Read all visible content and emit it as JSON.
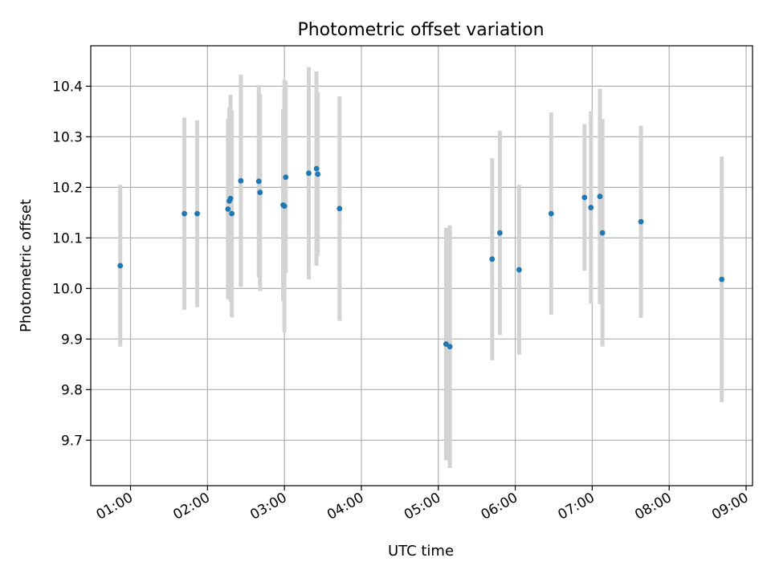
{
  "chart_data": {
    "type": "scatter",
    "title": "Photometric offset variation",
    "xlabel": "UTC time",
    "ylabel": "Photometric offset",
    "x_tick_labels": [
      "01:00",
      "02:00",
      "03:00",
      "04:00",
      "05:00",
      "06:00",
      "07:00",
      "08:00",
      "09:00"
    ],
    "y_tick_labels": [
      "9.7",
      "9.8",
      "9.9",
      "10.0",
      "10.1",
      "10.2",
      "10.3",
      "10.4"
    ],
    "xlim": [
      "00:29",
      "09:05"
    ],
    "ylim": [
      9.61,
      10.48
    ],
    "grid": true,
    "marker_color": "#1f77b4",
    "errorbar_color": "#d3d3d3",
    "points": [
      {
        "x": "00:52",
        "y": 10.045,
        "yerr": 0.16
      },
      {
        "x": "01:42",
        "y": 10.148,
        "yerr": 0.19
      },
      {
        "x": "01:52",
        "y": 10.148,
        "yerr": 0.185
      },
      {
        "x": "02:16",
        "y": 10.157,
        "yerr": 0.178
      },
      {
        "x": "02:17",
        "y": 10.173,
        "yerr": 0.185
      },
      {
        "x": "02:18",
        "y": 10.178,
        "yerr": 0.205
      },
      {
        "x": "02:19",
        "y": 10.148,
        "yerr": 0.205
      },
      {
        "x": "02:26",
        "y": 10.213,
        "yerr": 0.21
      },
      {
        "x": "02:40",
        "y": 10.212,
        "yerr": 0.19
      },
      {
        "x": "02:41",
        "y": 10.19,
        "yerr": 0.195
      },
      {
        "x": "02:59",
        "y": 10.165,
        "yerr": 0.19
      },
      {
        "x": "03:00",
        "y": 10.163,
        "yerr": 0.25
      },
      {
        "x": "03:01",
        "y": 10.22,
        "yerr": 0.19
      },
      {
        "x": "03:19",
        "y": 10.228,
        "yerr": 0.21
      },
      {
        "x": "03:25",
        "y": 10.237,
        "yerr": 0.192
      },
      {
        "x": "03:26",
        "y": 10.226,
        "yerr": 0.162
      },
      {
        "x": "03:43",
        "y": 10.158,
        "yerr": 0.222
      },
      {
        "x": "05:06",
        "y": 9.89,
        "yerr": 0.23
      },
      {
        "x": "05:09",
        "y": 9.885,
        "yerr": 0.24
      },
      {
        "x": "05:42",
        "y": 10.058,
        "yerr": 0.2
      },
      {
        "x": "05:48",
        "y": 10.11,
        "yerr": 0.202
      },
      {
        "x": "06:03",
        "y": 10.037,
        "yerr": 0.168
      },
      {
        "x": "06:28",
        "y": 10.148,
        "yerr": 0.2
      },
      {
        "x": "06:54",
        "y": 10.18,
        "yerr": 0.145
      },
      {
        "x": "06:59",
        "y": 10.16,
        "yerr": 0.19
      },
      {
        "x": "07:06",
        "y": 10.182,
        "yerr": 0.213
      },
      {
        "x": "07:08",
        "y": 10.11,
        "yerr": 0.225
      },
      {
        "x": "07:38",
        "y": 10.132,
        "yerr": 0.19
      },
      {
        "x": "08:41",
        "y": 10.018,
        "yerr": 0.243
      }
    ]
  }
}
